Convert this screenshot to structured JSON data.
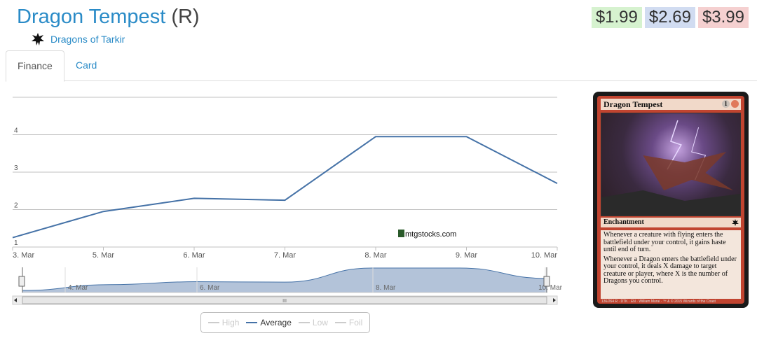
{
  "header": {
    "card_name": "Dragon Tempest",
    "rarity": "(R)",
    "set_name": "Dragons of Tarkir",
    "prices": {
      "low": "$1.99",
      "avg": "$2.69",
      "high": "$3.99"
    }
  },
  "tabs": [
    {
      "label": "Finance",
      "active": true
    },
    {
      "label": "Card",
      "active": false
    }
  ],
  "chart_data": {
    "type": "line",
    "x": [
      "3. Mar",
      "5. Mar",
      "6. Mar",
      "7. Mar",
      "8. Mar",
      "9. Mar",
      "10. Mar"
    ],
    "series": [
      {
        "name": "Average",
        "values": [
          1.25,
          1.95,
          2.3,
          2.25,
          3.95,
          3.95,
          2.7
        ]
      }
    ],
    "ylim": [
      1,
      5
    ],
    "yticks": [
      "1",
      "2",
      "3",
      "4"
    ],
    "grid": true,
    "watermark": "mtgstocks.com",
    "navigator": {
      "ticks": [
        "4. Mar",
        "6. Mar",
        "8. Mar",
        "10. Mar"
      ],
      "scroll_glyph": "III"
    },
    "legend": [
      {
        "name": "High",
        "active": false
      },
      {
        "name": "Average",
        "active": true
      },
      {
        "name": "Low",
        "active": false
      },
      {
        "name": "Foil",
        "active": false
      }
    ],
    "colors": {
      "average": "#4572a7",
      "navigator_fill": "#b3c3d9"
    }
  },
  "card_image": {
    "title": "Dragon Tempest",
    "mana_generic": "1",
    "type_line": "Enchantment",
    "rules_text": [
      "Whenever a creature with flying enters the battlefield under your control, it gains haste until end of turn.",
      "Whenever a Dragon enters the battlefield under your control, it deals X damage to target creature or player, where X is the number of Dragons you control."
    ],
    "footer": "136/264 R · DTK · EN · William Murai · ™ & © 2015 Wizards of the Coast"
  }
}
